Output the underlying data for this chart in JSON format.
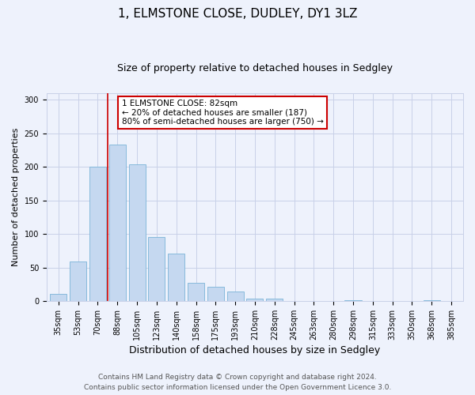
{
  "title": "1, ELMSTONE CLOSE, DUDLEY, DY1 3LZ",
  "subtitle": "Size of property relative to detached houses in Sedgley",
  "xlabel": "Distribution of detached houses by size in Sedgley",
  "ylabel": "Number of detached properties",
  "bar_labels": [
    "35sqm",
    "53sqm",
    "70sqm",
    "88sqm",
    "105sqm",
    "123sqm",
    "140sqm",
    "158sqm",
    "175sqm",
    "193sqm",
    "210sqm",
    "228sqm",
    "245sqm",
    "263sqm",
    "280sqm",
    "298sqm",
    "315sqm",
    "333sqm",
    "350sqm",
    "368sqm",
    "385sqm"
  ],
  "bar_values": [
    10,
    59,
    200,
    233,
    204,
    95,
    71,
    27,
    21,
    14,
    3,
    4,
    0,
    0,
    0,
    1,
    0,
    0,
    0,
    1,
    0
  ],
  "bar_color": "#c5d8f0",
  "bar_edge_color": "#7ab4d8",
  "background_color": "#eef2fc",
  "grid_color": "#c8d0e8",
  "ylim": [
    0,
    310
  ],
  "yticks": [
    0,
    50,
    100,
    150,
    200,
    250,
    300
  ],
  "vline_x": 2.5,
  "vline_color": "#cc0000",
  "annotation_text": "1 ELMSTONE CLOSE: 82sqm\n← 20% of detached houses are smaller (187)\n80% of semi-detached houses are larger (750) →",
  "annotation_box_color": "#ffffff",
  "annotation_box_edge": "#cc0000",
  "footer_line1": "Contains HM Land Registry data © Crown copyright and database right 2024.",
  "footer_line2": "Contains public sector information licensed under the Open Government Licence 3.0.",
  "title_fontsize": 11,
  "subtitle_fontsize": 9,
  "xlabel_fontsize": 9,
  "ylabel_fontsize": 8,
  "tick_fontsize": 7,
  "footer_fontsize": 6.5
}
